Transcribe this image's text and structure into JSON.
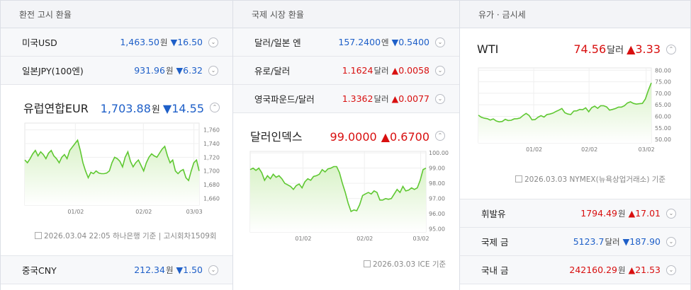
{
  "panels": {
    "exchange": {
      "header": "환전 고시 환율",
      "rows": [
        {
          "name": "미국USD",
          "value": "1,463.50",
          "unit": "원",
          "dir": "▼",
          "change": "16.50",
          "color": "blue",
          "toggle": "⌄"
        },
        {
          "name": "일본JPY(100엔)",
          "value": "931.96",
          "unit": "원",
          "dir": "▼",
          "change": "6.32",
          "color": "blue",
          "toggle": "⌄"
        }
      ],
      "featured": {
        "name": "유럽연합EUR",
        "value": "1,703.88",
        "unit": "원",
        "dir": "▼",
        "change": "14.55",
        "toggle": "⌃"
      },
      "footer": "2026.03.04 22:05 하나은행 기준 | 고시회차1509회",
      "bottom_row": {
        "name": "중국CNY",
        "value": "212.34",
        "unit": "원",
        "dir": "▼",
        "change": "1.50",
        "toggle": "⌄"
      }
    },
    "international": {
      "header": "국제 시장 환율",
      "rows": [
        {
          "name": "달러/일본 엔",
          "value": "157.2400",
          "unit": "엔",
          "dir": "▼",
          "change": "0.5400",
          "color": "blue",
          "toggle": "⌄"
        },
        {
          "name": "유로/달러",
          "value": "1.1624",
          "unit": "달러",
          "dir": "▲",
          "change": "0.0058",
          "color": "red",
          "toggle": "⌄"
        },
        {
          "name": "영국파운드/달러",
          "value": "1.3362",
          "unit": "달러",
          "dir": "▲",
          "change": "0.0077",
          "color": "red",
          "toggle": "⌄"
        }
      ],
      "featured": {
        "name": "달러인덱스",
        "value": "99.0000",
        "unit": "",
        "dir": "▲",
        "change": "0.6700",
        "toggle": "⌃"
      },
      "footer": "2026.03.03 ICE 기준"
    },
    "commodities": {
      "header": "유가 · 금시세",
      "featured": {
        "name": "WTI",
        "value": "74.56",
        "unit": "달러",
        "dir": "▲",
        "change": "3.33",
        "toggle": "⌃"
      },
      "footer": "2026.03.03 NYMEX(뉴욕상업거래소) 기준",
      "rows": [
        {
          "name": "휘발유",
          "value": "1794.49",
          "unit": "원",
          "dir": "▲",
          "change": "17.01",
          "color": "red",
          "toggle": "⌄"
        },
        {
          "name": "국제 금",
          "value": "5123.7",
          "unit": "달러",
          "dir": "▼",
          "change": "187.90",
          "color": "blue",
          "toggle": "⌄"
        },
        {
          "name": "국내 금",
          "value": "242160.29",
          "unit": "원",
          "dir": "▲",
          "change": "21.53",
          "color": "red",
          "toggle": "⌄"
        }
      ]
    }
  },
  "colors": {
    "up": "#d80f0f",
    "down": "#1e5fc8",
    "line": "#5fc832",
    "fill": "#e6f6dc"
  },
  "chart_data": [
    {
      "type": "area",
      "x_ticks": [
        "01/02",
        "02/02",
        "03/03"
      ],
      "y_ticks": [
        1660,
        1680,
        1700,
        1720,
        1740,
        1760
      ],
      "ylim": [
        1650,
        1770
      ],
      "values": [
        1716,
        1712,
        1718,
        1725,
        1730,
        1722,
        1728,
        1724,
        1718,
        1726,
        1730,
        1722,
        1718,
        1712,
        1720,
        1724,
        1718,
        1730,
        1735,
        1740,
        1745,
        1730,
        1712,
        1700,
        1690,
        1698,
        1696,
        1700,
        1697,
        1696,
        1696,
        1697,
        1700,
        1712,
        1720,
        1718,
        1714,
        1706,
        1720,
        1728,
        1714,
        1706,
        1712,
        1716,
        1708,
        1700,
        1712,
        1720,
        1725,
        1722,
        1720,
        1726,
        1732,
        1736,
        1722,
        1712,
        1716,
        1700,
        1696,
        1700,
        1702,
        1690,
        1686,
        1700,
        1712,
        1716,
        1700
      ]
    },
    {
      "type": "area",
      "x_ticks": [
        "01/02",
        "02/02",
        "03/02"
      ],
      "y_ticks": [
        95,
        96,
        97,
        98,
        99,
        100
      ],
      "ylim": [
        94.8,
        100.1
      ],
      "values": [
        98.9,
        99.0,
        98.85,
        99.0,
        98.7,
        98.2,
        98.5,
        98.3,
        98.6,
        98.4,
        98.5,
        98.3,
        98.0,
        97.9,
        97.8,
        97.6,
        97.85,
        97.95,
        97.7,
        98.1,
        98.3,
        98.2,
        98.45,
        98.5,
        98.6,
        98.9,
        98.75,
        98.95,
        99.0,
        99.1,
        99.1,
        98.7,
        98.0,
        97.4,
        96.7,
        96.15,
        96.25,
        96.2,
        96.6,
        97.2,
        97.3,
        97.4,
        97.3,
        97.5,
        97.4,
        96.9,
        96.9,
        97.0,
        96.95,
        97.0,
        97.3,
        97.6,
        97.4,
        97.8,
        97.5,
        97.55,
        97.7,
        97.6,
        97.7,
        98.2,
        98.9,
        99.0
      ]
    },
    {
      "type": "area",
      "x_ticks": [
        "01/02",
        "02/02",
        "03/02"
      ],
      "y_ticks": [
        50,
        55,
        60,
        65,
        70,
        75,
        80
      ],
      "ylim": [
        48.5,
        81
      ],
      "values": [
        60.5,
        59.6,
        59.2,
        59.0,
        58.4,
        58.9,
        58.0,
        57.6,
        57.8,
        58.7,
        58.2,
        58.3,
        58.9,
        59.0,
        59.3,
        60.4,
        61.3,
        60.4,
        58.5,
        58.6,
        59.6,
        60.3,
        59.7,
        60.8,
        61.0,
        61.4,
        62.1,
        62.7,
        63.4,
        61.6,
        61.0,
        60.8,
        62.3,
        62.4,
        63.0,
        62.9,
        63.7,
        62.0,
        63.8,
        64.4,
        63.5,
        64.6,
        64.6,
        64.1,
        62.7,
        63.0,
        63.4,
        64.0,
        64.0,
        64.6,
        65.8,
        66.3,
        65.6,
        65.3,
        65.5,
        65.6,
        67.5,
        71.3,
        74.5
      ]
    }
  ]
}
